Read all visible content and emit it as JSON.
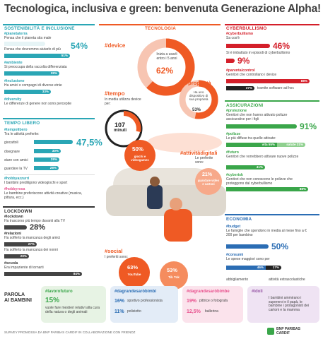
{
  "title": "Tecnologica, inclusiva e green: benvenuta Generazione Alpha!",
  "colors": {
    "teal": "#2aa6b5",
    "orange": "#ef5a24",
    "red": "#d41f2a",
    "green": "#3aa64a",
    "blue": "#2b6db4",
    "purple": "#9a5aa8"
  },
  "sostenibilita": {
    "header": "SOSTENIBILITÀ E INCLUSIONE",
    "items": [
      {
        "tag": "#pianetaterra",
        "text": "Pensa che il pianeta stia male",
        "value": "54%"
      },
      {
        "text": "Pensa che dovremmo aiutarlo di più",
        "value": "51%"
      },
      {
        "tag": "#ambiente",
        "text": "Si preoccupa della raccolta differenziata",
        "value": "39%"
      },
      {
        "tag": "#inclusione",
        "text": "Ha amici o compagni di diverse etnie",
        "value": "33%"
      },
      {
        "tag": "#diversity",
        "text": "Le differenze di genere non sono percepite"
      }
    ]
  },
  "tempolibero": {
    "header": "TEMPO LIBERO",
    "tag1": "#tempolibero",
    "intro": "Tra le attività preferite:",
    "items": [
      {
        "label": "giocattoli",
        "value": "47,5%"
      },
      {
        "label": "disegnare",
        "value": "30%"
      },
      {
        "label": "stare con amici",
        "value": "29%"
      },
      {
        "label": "guardare la TV",
        "value": "28%"
      }
    ],
    "tag2": "#hobbyazzurri",
    "text2": "I bambini prediligono videogiochi e sport",
    "tag3": "#hobbyrosa",
    "text3": "Le bambine preferiscono attività creative (musica, pittura, ecc.)"
  },
  "lockdown": {
    "header": "LOCKDOWN",
    "items": [
      {
        "tag": "#lockdown",
        "text": "Ha trascorso più tempo davanti alla TV",
        "value": "28%"
      },
      {
        "tag": "#relazioni",
        "text": "Ha sofferto la mancanza degli amici",
        "value": "27%"
      },
      {
        "text": "Ha sofferto la mancanza dei nonni",
        "value": "20%"
      },
      {
        "tag": "#scuola",
        "text": "Era impaziente di tornarti",
        "value": "84%"
      }
    ]
  },
  "tecnologia": {
    "header": "TECNOLOGIA",
    "device_tag": "#device",
    "device_text": "Inizia a usarli entro i 5 anni",
    "device_value": "62%",
    "proprieta_tag": "#proprietà",
    "proprieta_text": "Ha uno dispositivo di sua proprietà",
    "proprieta_value": "53%",
    "tempo_tag": "#tempo",
    "tempo_text": "In media utilizza device per:",
    "tempo_value": "107",
    "tempo_unit": "minuti",
    "attivita_tag": "#attivitàdigitali",
    "attivita_text": "Le preferite sono:",
    "giochi_value": "50%",
    "giochi_label": "giochi e videogames",
    "video_value": "21%",
    "video_label": "guardare video e cartoni",
    "social_tag": "#social",
    "social_text": "I preferiti sono:",
    "youtube_value": "63%",
    "youtube_label": "YouTube",
    "tiktok_value": "53%",
    "tiktok_label": "Tik Tok"
  },
  "cyberbullismo": {
    "header": "CYBERBULLISMO",
    "tag1": "#cyberbullismo",
    "text1": "Sa cos'è",
    "value1": "46%",
    "text2": "Si è imbattuto in episodi di cyberbullismo",
    "value2": "9%",
    "tag3": "#parentalcontrol",
    "text3": "Genitori che controllano i device",
    "value3": "88%",
    "value4": "37%",
    "text4": "tramite software ad hoc"
  },
  "assicurazioni": {
    "header": "ASSICURAZIONI",
    "tag1": "#protezione",
    "text1": "Genitori che non hanno attivato polizze assicurative per i figli",
    "value1": "91%",
    "tag2": "#polizze",
    "text2": "Le più diffuse tra quelle attivate:",
    "vita": "vita 55%",
    "salute": "salute 31%",
    "tag3": "#futuro",
    "text3": "Genitori che vorrebbero attivare nuove polizze",
    "value3": "41%",
    "tag4": "#cyberisk",
    "text4": "Genitori che non conoscono le polizze che proteggono dal cyberbullismo",
    "value4": "88%"
  },
  "economia": {
    "header": "ECONOMIA",
    "tag1": "#budget",
    "text1": "Le famiglie che spendono in media al mese fino a € 200 per bambino",
    "value1": "50%",
    "tag2": "#consumi",
    "text2": "Le spese maggiori sono per",
    "value_abb": "46%",
    "value_att": "17%",
    "label_abb": "abbigliamento",
    "label_att": "attività extrascolastiche"
  },
  "parola": {
    "header_line1": "PAROLA",
    "header_line2": "AI BAMBINI",
    "boxes": [
      {
        "tag": "#lavorofuturo",
        "value": "15%",
        "text": "vuole fare mestieri relativi alla cura della natura o degli animali"
      },
      {
        "tag": "#dagrandesaròbimbi",
        "rows": [
          {
            "value": "16%",
            "label": "sportivo professionista"
          },
          {
            "value": "11%",
            "label": "poliziotto"
          }
        ]
      },
      {
        "tag": "#dagrandesaròbimbe",
        "rows": [
          {
            "value": "19%",
            "label": "pittrice o fotografa"
          },
          {
            "value": "12,5%",
            "label": "ballerina"
          }
        ]
      },
      {
        "tag": "#idoli",
        "text": "I bambini ammirano i supereroi e il papà, le bambine i protagonisti dei cartoni e la mamma"
      }
    ]
  },
  "footer": "SURVEY PROMOSSA DA BNP PARIBAS CARDIF IN COLLABORAZIONE CON FRIENDZ",
  "brand": {
    "line1": "BNP PARIBAS",
    "line2": "CARDIF"
  }
}
